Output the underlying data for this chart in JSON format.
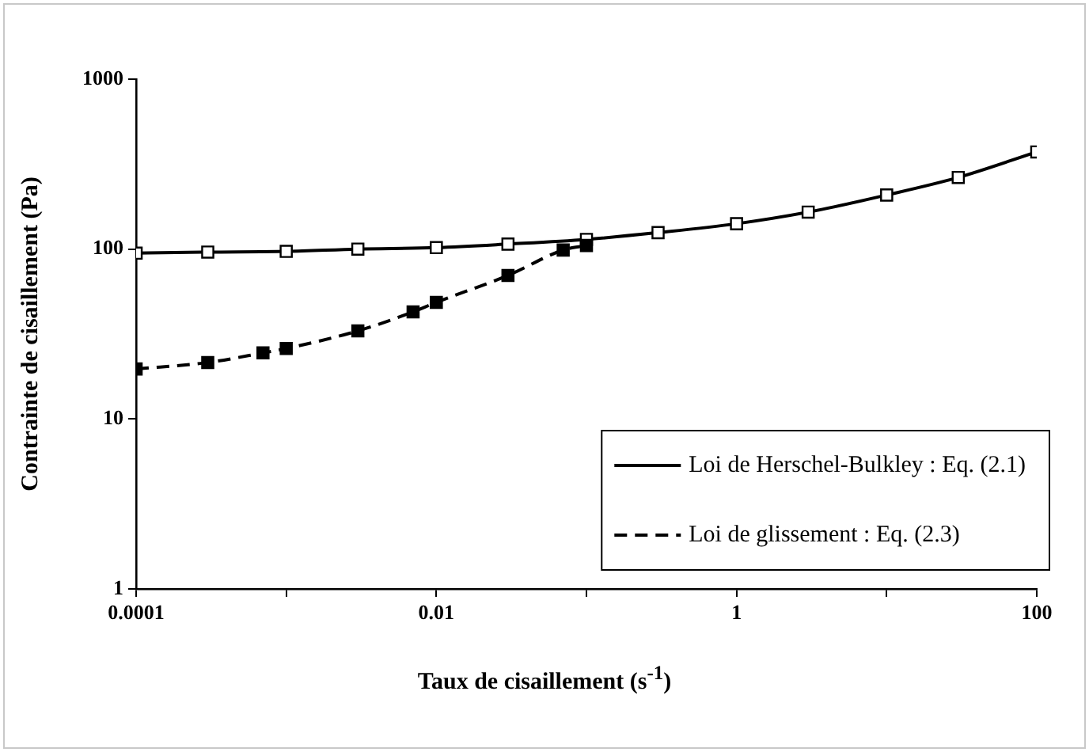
{
  "chart_data": {
    "type": "line",
    "xlabel": "Taux de cisaillement (s$^{-1}$)",
    "ylabel": "Contrainte de cisaillement (Pa)",
    "log": "xy",
    "xlim": [
      0.0001,
      100
    ],
    "ylim": [
      1,
      1000
    ],
    "xticks": [
      0.0001,
      {
        "value": 0.001,
        "label": null
      },
      0.01,
      {
        "value": 0.1,
        "label": null
      },
      1,
      {
        "value": 10,
        "label": null
      },
      100
    ],
    "yticks": [
      1,
      10,
      100,
      1000
    ],
    "grid": false,
    "legend": "bottom right",
    "marker": "square",
    "series": [
      {
        "name": "Loi de Herschel-Bulkley : Eq. (2.1)",
        "color": "#000000",
        "line_style": "solid",
        "x": [
          0.0001,
          0.0003,
          0.001,
          0.003,
          0.01,
          0.03,
          0.1,
          0.3,
          1,
          3,
          10,
          30,
          100
        ],
        "values": [
          94.6,
          96,
          97,
          100,
          102,
          107,
          114,
          125,
          141,
          165,
          208,
          264,
          373
        ]
      },
      {
        "name": "Loi de glissement : Eq. (2.3)",
        "color": "#000000",
        "line_style": "dashed",
        "x": [
          0.0001,
          0.0003,
          0.0007,
          0.001,
          0.003,
          0.007,
          0.01,
          0.03,
          0.07,
          0.1
        ],
        "values": [
          19.7,
          21.5,
          24.5,
          26,
          33,
          42.7,
          48.6,
          70,
          98.7,
          105
        ]
      }
    ]
  }
}
